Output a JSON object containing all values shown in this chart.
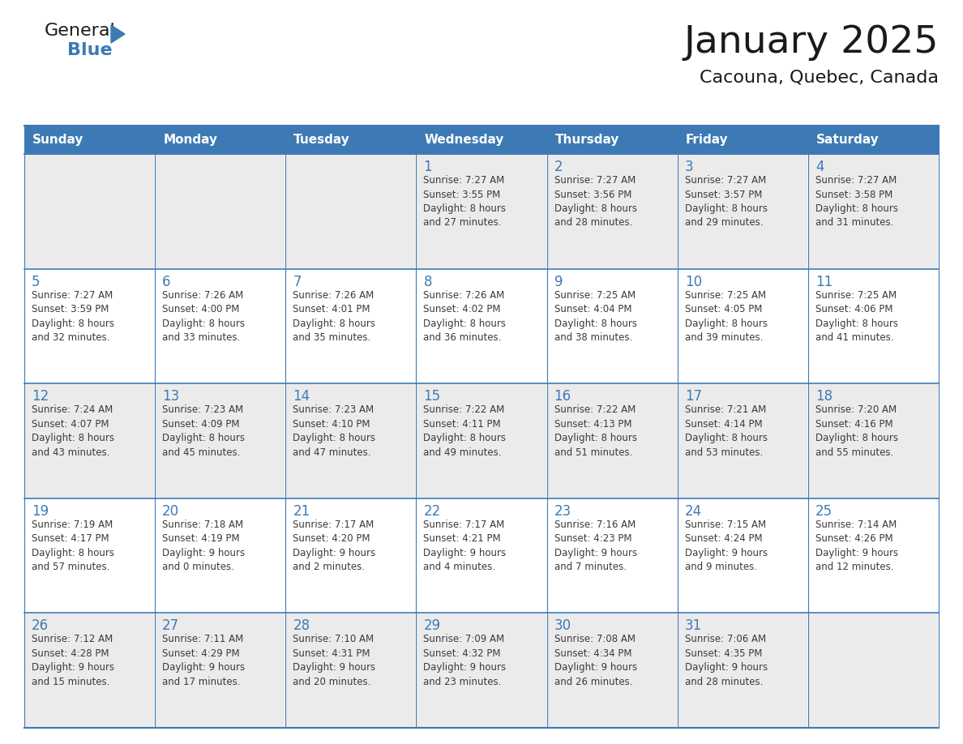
{
  "title": "January 2025",
  "subtitle": "Cacouna, Quebec, Canada",
  "days_of_week": [
    "Sunday",
    "Monday",
    "Tuesday",
    "Wednesday",
    "Thursday",
    "Friday",
    "Saturday"
  ],
  "header_bg": "#3d7ab5",
  "header_text": "#ffffff",
  "cell_bg_odd": "#ebebeb",
  "cell_bg_even": "#ffffff",
  "day_text_color": "#3d7ab5",
  "data_text_color": "#3a3a3a",
  "line_color": "#3d7ab5",
  "logo_color_general": "#1a1a1a",
  "logo_color_blue": "#3d7ab5",
  "logo_triangle_color": "#3d7ab5",
  "weeks": [
    [
      {
        "day": null,
        "text": ""
      },
      {
        "day": null,
        "text": ""
      },
      {
        "day": null,
        "text": ""
      },
      {
        "day": 1,
        "text": "Sunrise: 7:27 AM\nSunset: 3:55 PM\nDaylight: 8 hours\nand 27 minutes."
      },
      {
        "day": 2,
        "text": "Sunrise: 7:27 AM\nSunset: 3:56 PM\nDaylight: 8 hours\nand 28 minutes."
      },
      {
        "day": 3,
        "text": "Sunrise: 7:27 AM\nSunset: 3:57 PM\nDaylight: 8 hours\nand 29 minutes."
      },
      {
        "day": 4,
        "text": "Sunrise: 7:27 AM\nSunset: 3:58 PM\nDaylight: 8 hours\nand 31 minutes."
      }
    ],
    [
      {
        "day": 5,
        "text": "Sunrise: 7:27 AM\nSunset: 3:59 PM\nDaylight: 8 hours\nand 32 minutes."
      },
      {
        "day": 6,
        "text": "Sunrise: 7:26 AM\nSunset: 4:00 PM\nDaylight: 8 hours\nand 33 minutes."
      },
      {
        "day": 7,
        "text": "Sunrise: 7:26 AM\nSunset: 4:01 PM\nDaylight: 8 hours\nand 35 minutes."
      },
      {
        "day": 8,
        "text": "Sunrise: 7:26 AM\nSunset: 4:02 PM\nDaylight: 8 hours\nand 36 minutes."
      },
      {
        "day": 9,
        "text": "Sunrise: 7:25 AM\nSunset: 4:04 PM\nDaylight: 8 hours\nand 38 minutes."
      },
      {
        "day": 10,
        "text": "Sunrise: 7:25 AM\nSunset: 4:05 PM\nDaylight: 8 hours\nand 39 minutes."
      },
      {
        "day": 11,
        "text": "Sunrise: 7:25 AM\nSunset: 4:06 PM\nDaylight: 8 hours\nand 41 minutes."
      }
    ],
    [
      {
        "day": 12,
        "text": "Sunrise: 7:24 AM\nSunset: 4:07 PM\nDaylight: 8 hours\nand 43 minutes."
      },
      {
        "day": 13,
        "text": "Sunrise: 7:23 AM\nSunset: 4:09 PM\nDaylight: 8 hours\nand 45 minutes."
      },
      {
        "day": 14,
        "text": "Sunrise: 7:23 AM\nSunset: 4:10 PM\nDaylight: 8 hours\nand 47 minutes."
      },
      {
        "day": 15,
        "text": "Sunrise: 7:22 AM\nSunset: 4:11 PM\nDaylight: 8 hours\nand 49 minutes."
      },
      {
        "day": 16,
        "text": "Sunrise: 7:22 AM\nSunset: 4:13 PM\nDaylight: 8 hours\nand 51 minutes."
      },
      {
        "day": 17,
        "text": "Sunrise: 7:21 AM\nSunset: 4:14 PM\nDaylight: 8 hours\nand 53 minutes."
      },
      {
        "day": 18,
        "text": "Sunrise: 7:20 AM\nSunset: 4:16 PM\nDaylight: 8 hours\nand 55 minutes."
      }
    ],
    [
      {
        "day": 19,
        "text": "Sunrise: 7:19 AM\nSunset: 4:17 PM\nDaylight: 8 hours\nand 57 minutes."
      },
      {
        "day": 20,
        "text": "Sunrise: 7:18 AM\nSunset: 4:19 PM\nDaylight: 9 hours\nand 0 minutes."
      },
      {
        "day": 21,
        "text": "Sunrise: 7:17 AM\nSunset: 4:20 PM\nDaylight: 9 hours\nand 2 minutes."
      },
      {
        "day": 22,
        "text": "Sunrise: 7:17 AM\nSunset: 4:21 PM\nDaylight: 9 hours\nand 4 minutes."
      },
      {
        "day": 23,
        "text": "Sunrise: 7:16 AM\nSunset: 4:23 PM\nDaylight: 9 hours\nand 7 minutes."
      },
      {
        "day": 24,
        "text": "Sunrise: 7:15 AM\nSunset: 4:24 PM\nDaylight: 9 hours\nand 9 minutes."
      },
      {
        "day": 25,
        "text": "Sunrise: 7:14 AM\nSunset: 4:26 PM\nDaylight: 9 hours\nand 12 minutes."
      }
    ],
    [
      {
        "day": 26,
        "text": "Sunrise: 7:12 AM\nSunset: 4:28 PM\nDaylight: 9 hours\nand 15 minutes."
      },
      {
        "day": 27,
        "text": "Sunrise: 7:11 AM\nSunset: 4:29 PM\nDaylight: 9 hours\nand 17 minutes."
      },
      {
        "day": 28,
        "text": "Sunrise: 7:10 AM\nSunset: 4:31 PM\nDaylight: 9 hours\nand 20 minutes."
      },
      {
        "day": 29,
        "text": "Sunrise: 7:09 AM\nSunset: 4:32 PM\nDaylight: 9 hours\nand 23 minutes."
      },
      {
        "day": 30,
        "text": "Sunrise: 7:08 AM\nSunset: 4:34 PM\nDaylight: 9 hours\nand 26 minutes."
      },
      {
        "day": 31,
        "text": "Sunrise: 7:06 AM\nSunset: 4:35 PM\nDaylight: 9 hours\nand 28 minutes."
      },
      {
        "day": null,
        "text": ""
      }
    ]
  ]
}
